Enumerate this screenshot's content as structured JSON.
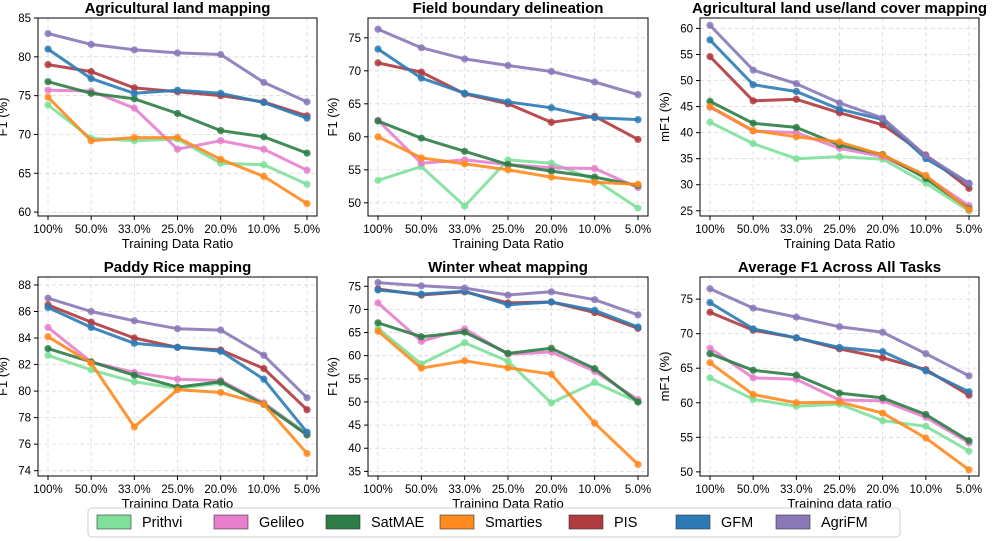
{
  "chart_data": {
    "type": "line",
    "categories": [
      "100%",
      "50.0%",
      "33.0%",
      "25.0%",
      "20.0%",
      "10.0%",
      "5.0%"
    ],
    "legend": [
      {
        "name": "Prithvi",
        "color": "#7ee09a"
      },
      {
        "name": "Gelileo",
        "color": "#e77fcc"
      },
      {
        "name": "SatMAE",
        "color": "#2e7d46"
      },
      {
        "name": "Smarties",
        "color": "#ff8a1f"
      },
      {
        "name": "PIS",
        "color": "#b03a3e"
      },
      {
        "name": "GFM",
        "color": "#2c7bb6"
      },
      {
        "name": "AgriFM",
        "color": "#8a78b8"
      }
    ],
    "panels": [
      {
        "title": "Agricultural land mapping",
        "xlabel": "Training Data Ratio",
        "ylabel": "F1 (%)",
        "ylim": [
          59.5,
          85
        ],
        "yticks": [
          60,
          65,
          70,
          75,
          80,
          85
        ],
        "series": [
          {
            "name": "Prithvi",
            "values": [
              73.8,
              69.5,
              69.2,
              69.4,
              66.3,
              66.1,
              63.6
            ]
          },
          {
            "name": "Gelileo",
            "values": [
              75.7,
              75.6,
              73.4,
              68.1,
              69.2,
              68.1,
              65.4
            ]
          },
          {
            "name": "SatMAE",
            "values": [
              76.8,
              75.3,
              74.6,
              72.7,
              70.5,
              69.7,
              67.6
            ]
          },
          {
            "name": "Smarties",
            "values": [
              74.8,
              69.2,
              69.6,
              69.6,
              66.8,
              64.6,
              61.1
            ]
          },
          {
            "name": "PIS",
            "values": [
              79.0,
              78.1,
              76.0,
              75.5,
              75.0,
              74.2,
              72.4
            ]
          },
          {
            "name": "GFM",
            "values": [
              81.0,
              77.2,
              75.3,
              75.7,
              75.3,
              74.1,
              72.1
            ]
          },
          {
            "name": "AgriFM",
            "values": [
              83.0,
              81.6,
              80.9,
              80.5,
              80.3,
              76.7,
              74.2
            ]
          }
        ]
      },
      {
        "title": "Field boundary delineation",
        "xlabel": "Training Data Ratio",
        "ylabel": "F1 (%)",
        "ylim": [
          48,
          78
        ],
        "yticks": [
          50,
          55,
          60,
          65,
          70,
          75
        ],
        "series": [
          {
            "name": "Prithvi",
            "values": [
              53.4,
              55.5,
              49.5,
              56.5,
              56.0,
              53.5,
              49.2
            ]
          },
          {
            "name": "Gelileo",
            "values": [
              62.5,
              56.0,
              56.5,
              55.8,
              55.3,
              55.2,
              52.3
            ]
          },
          {
            "name": "SatMAE",
            "values": [
              62.4,
              59.8,
              57.8,
              55.8,
              54.8,
              53.9,
              52.6
            ]
          },
          {
            "name": "Smarties",
            "values": [
              60.0,
              56.8,
              55.9,
              55.0,
              53.9,
              53.1,
              52.8
            ]
          },
          {
            "name": "PIS",
            "values": [
              71.2,
              69.8,
              66.5,
              65.0,
              62.2,
              63.1,
              59.6
            ]
          },
          {
            "name": "GFM",
            "values": [
              73.3,
              68.9,
              66.6,
              65.3,
              64.4,
              62.9,
              62.6
            ]
          },
          {
            "name": "AgriFM",
            "values": [
              76.3,
              73.5,
              71.8,
              70.8,
              69.9,
              68.3,
              66.4
            ]
          }
        ]
      },
      {
        "title": "Agricultural land use/land cover mapping",
        "xlabel": "Training Data Ratio",
        "ylabel": "mF1 (%)",
        "ylim": [
          24,
          62
        ],
        "yticks": [
          25,
          30,
          35,
          40,
          45,
          50,
          55,
          60
        ],
        "series": [
          {
            "name": "Prithvi",
            "values": [
              42.0,
              37.9,
              35.0,
              35.4,
              34.9,
              30.3,
              25.0
            ]
          },
          {
            "name": "Gelileo",
            "values": [
              44.9,
              40.3,
              40.0,
              37.0,
              35.4,
              31.5,
              26.0
            ]
          },
          {
            "name": "SatMAE",
            "values": [
              46.0,
              41.8,
              41.0,
              37.6,
              35.8,
              31.2,
              25.4
            ]
          },
          {
            "name": "Smarties",
            "values": [
              45.0,
              40.4,
              39.2,
              38.2,
              35.7,
              31.8,
              25.2
            ]
          },
          {
            "name": "PIS",
            "values": [
              54.6,
              46.1,
              46.4,
              43.8,
              41.5,
              35.7,
              29.3
            ]
          },
          {
            "name": "GFM",
            "values": [
              57.8,
              49.2,
              47.9,
              44.5,
              42.5,
              35.0,
              30.2
            ]
          },
          {
            "name": "AgriFM",
            "values": [
              60.6,
              52.0,
              49.4,
              45.7,
              42.8,
              35.6,
              30.3
            ]
          }
        ]
      },
      {
        "title": "Paddy Rice mapping",
        "xlabel": "Training Data Ratio",
        "ylabel": "F1 (%)",
        "ylim": [
          73.6,
          88.6
        ],
        "yticks": [
          74,
          76,
          78,
          80,
          82,
          84,
          86,
          88
        ],
        "series": [
          {
            "name": "Prithvi",
            "values": [
              82.7,
              81.6,
              80.7,
              80.2,
              80.6,
              79.1,
              76.8
            ]
          },
          {
            "name": "Gelileo",
            "values": [
              84.8,
              82.2,
              81.4,
              80.9,
              80.8,
              79.1,
              76.7
            ]
          },
          {
            "name": "SatMAE",
            "values": [
              83.2,
              82.2,
              81.2,
              80.3,
              80.7,
              79.0,
              76.7
            ]
          },
          {
            "name": "Smarties",
            "values": [
              84.1,
              82.1,
              77.3,
              80.1,
              79.9,
              79.0,
              75.3
            ]
          },
          {
            "name": "PIS",
            "values": [
              86.5,
              85.2,
              84.0,
              83.3,
              83.1,
              81.7,
              78.6
            ]
          },
          {
            "name": "GFM",
            "values": [
              86.3,
              84.8,
              83.6,
              83.3,
              83.0,
              80.9,
              76.9
            ]
          },
          {
            "name": "AgriFM",
            "values": [
              87.0,
              86.0,
              85.3,
              84.7,
              84.6,
              82.7,
              79.5
            ]
          }
        ]
      },
      {
        "title": "Winter wheat mapping",
        "xlabel": "Training Data Ratio",
        "ylabel": "F1 (%)",
        "ylim": [
          34,
          77
        ],
        "yticks": [
          35,
          40,
          45,
          50,
          55,
          60,
          65,
          70,
          75
        ],
        "series": [
          {
            "name": "Prithvi",
            "values": [
              65.9,
              58.2,
              62.8,
              58.8,
              49.8,
              54.2,
              50.0
            ]
          },
          {
            "name": "Gelileo",
            "values": [
              71.4,
              63.1,
              65.8,
              60.3,
              60.8,
              56.6,
              50.5
            ]
          },
          {
            "name": "SatMAE",
            "values": [
              67.1,
              64.1,
              65.1,
              60.5,
              61.6,
              57.2,
              50.0
            ]
          },
          {
            "name": "Smarties",
            "values": [
              65.3,
              57.3,
              58.9,
              57.4,
              56.0,
              45.4,
              36.5
            ]
          },
          {
            "name": "PIS",
            "values": [
              74.4,
              73.1,
              73.8,
              71.4,
              71.6,
              69.3,
              65.9
            ]
          },
          {
            "name": "GFM",
            "values": [
              74.2,
              73.3,
              73.9,
              71.0,
              71.6,
              69.8,
              66.2
            ]
          },
          {
            "name": "AgriFM",
            "values": [
              75.8,
              75.1,
              74.6,
              73.1,
              73.8,
              72.1,
              68.8
            ]
          }
        ]
      },
      {
        "title": "Average F1 Across All Tasks",
        "xlabel": "Training data ratio",
        "ylabel": "mF1 (%)",
        "ylim": [
          49.4,
          78.2
        ],
        "yticks": [
          50,
          55,
          60,
          65,
          70,
          75
        ],
        "series": [
          {
            "name": "Prithvi",
            "values": [
              63.6,
              60.5,
              59.5,
              59.8,
              57.4,
              56.6,
              53.0
            ]
          },
          {
            "name": "Gelileo",
            "values": [
              67.9,
              63.6,
              63.4,
              60.4,
              60.3,
              57.9,
              54.2
            ]
          },
          {
            "name": "SatMAE",
            "values": [
              67.1,
              64.7,
              64.0,
              61.4,
              60.7,
              58.3,
              54.5
            ]
          },
          {
            "name": "Smarties",
            "values": [
              65.8,
              61.2,
              60.0,
              60.1,
              58.5,
              54.9,
              50.3
            ]
          },
          {
            "name": "PIS",
            "values": [
              73.1,
              70.5,
              69.4,
              67.8,
              66.5,
              64.8,
              61.1
            ]
          },
          {
            "name": "GFM",
            "values": [
              74.5,
              70.7,
              69.4,
              68.0,
              67.4,
              64.6,
              61.6
            ]
          },
          {
            "name": "AgriFM",
            "values": [
              76.5,
              73.7,
              72.4,
              71.0,
              70.2,
              67.1,
              63.9
            ]
          }
        ]
      }
    ]
  }
}
